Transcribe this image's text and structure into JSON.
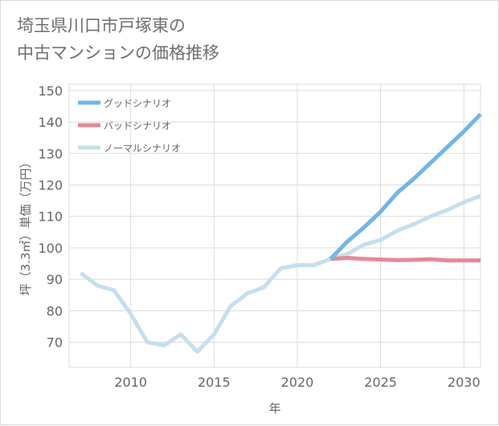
{
  "title_lines": [
    "埼玉県川口市戸塚東の",
    "中古マンションの価格推移"
  ],
  "chart_data": {
    "type": "line",
    "xlabel": "年",
    "ylabel": "坪（3.3㎡）単価（万円）",
    "xlim": [
      2006.3,
      2031
    ],
    "ylim": [
      62,
      152
    ],
    "x_ticks": [
      2010,
      2015,
      2020,
      2025,
      2030
    ],
    "y_ticks": [
      70,
      80,
      90,
      100,
      110,
      120,
      130,
      140,
      150
    ],
    "grid": true,
    "legend_position": "top-left",
    "series": [
      {
        "name": "ノーマルシナリオ",
        "color": "#c5e0ec",
        "x": [
          2007,
          2008,
          2009,
          2010,
          2011,
          2012,
          2013,
          2014,
          2015,
          2016,
          2017,
          2018,
          2019,
          2020,
          2021,
          2022,
          2023,
          2024,
          2025,
          2026,
          2027,
          2028,
          2029,
          2030,
          2031
        ],
        "values": [
          92,
          88,
          86.5,
          79,
          70,
          69,
          72.5,
          67,
          72.5,
          81.5,
          85.5,
          87.5,
          93.5,
          94.5,
          94.5,
          96.5,
          98,
          101,
          102.5,
          105.5,
          107.5,
          110,
          112,
          114.5,
          116.5
        ]
      },
      {
        "name": "バッドシナリオ",
        "color": "#e58a93",
        "x": [
          2022,
          2023,
          2024,
          2025,
          2026,
          2027,
          2028,
          2029,
          2030,
          2031
        ],
        "values": [
          96.5,
          96.8,
          96.5,
          96.3,
          96.1,
          96.2,
          96.4,
          96,
          96,
          96
        ]
      },
      {
        "name": "グッドシナリオ",
        "color": "#70b6e8",
        "x": [
          2022,
          2023,
          2024,
          2025,
          2026,
          2027,
          2028,
          2029,
          2030,
          2031
        ],
        "values": [
          96.5,
          102,
          106.5,
          111.5,
          117.5,
          122,
          127,
          132,
          137,
          142.5
        ]
      }
    ],
    "legend": [
      "グッドシナリオ",
      "バッドシナリオ",
      "ノーマルシナリオ"
    ]
  }
}
